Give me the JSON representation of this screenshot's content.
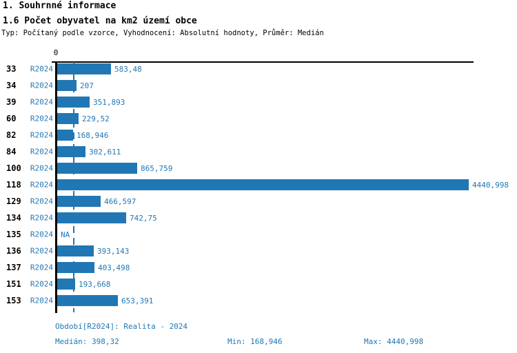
{
  "header": {
    "section_title": "1. Souhrnné informace",
    "chart_title": "1.6 Počet obyvatel na km2 území obce",
    "subtitle": "Typ: Počítaný podle vzorce, Vyhodnocení: Absolutní hodnoty, Průměr: Medián"
  },
  "axis": {
    "zero_label": "0"
  },
  "footer": {
    "period_line": "Období[R2024]: Realita - 2024",
    "median": "Medián: 398,32",
    "min": "Min: 168,946",
    "max": "Max: 4440,998"
  },
  "chart_data": {
    "type": "bar",
    "orientation": "horizontal",
    "title": "1.6 Počet obyvatel na km2 území obce",
    "series_label": "R2024",
    "categories": [
      "33",
      "34",
      "39",
      "60",
      "82",
      "84",
      "100",
      "118",
      "129",
      "134",
      "135",
      "136",
      "137",
      "151",
      "153"
    ],
    "values": [
      583.48,
      207,
      351.893,
      229.52,
      168.946,
      302.611,
      865.759,
      4440.998,
      466.597,
      742.75,
      null,
      393.143,
      403.498,
      193.668,
      653.391
    ],
    "value_labels": [
      "583,48",
      "207",
      "351,893",
      "229,52",
      "168,946",
      "302,611",
      "865,759",
      "4440,998",
      "466,597",
      "742,75",
      "NA",
      "393,143",
      "403,498",
      "193,668",
      "653,391"
    ],
    "na_text": "NA",
    "xlim": [
      0,
      4441
    ],
    "median_value": 398.32,
    "min_value": 168.946,
    "max_value": 4440.998,
    "bar_color": "#2077b4",
    "median_line_color": "#1f77b4",
    "grid": false,
    "legend_position": "none"
  }
}
